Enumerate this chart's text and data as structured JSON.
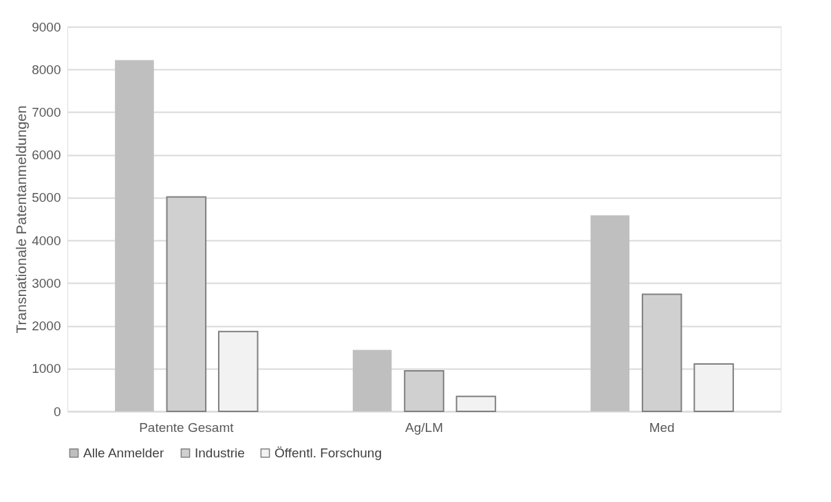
{
  "chart_data": {
    "type": "bar",
    "ylabel": "Transnationale Patentanmeldungen",
    "categories": [
      "Patente Gesamt",
      "Ag/LM",
      "Med"
    ],
    "series": [
      {
        "name": "Alle Anmelder",
        "color": "#bfbfbf",
        "values": [
          8220,
          1440,
          4590
        ]
      },
      {
        "name": "Industrie",
        "color": "#d0d0d0",
        "values": [
          5020,
          950,
          2740
        ]
      },
      {
        "name": "Öffentl. Forschung",
        "color": "#f2f2f2",
        "values": [
          1870,
          350,
          1110
        ]
      }
    ],
    "ylim": [
      0,
      9000
    ],
    "yticks": [
      0,
      1000,
      2000,
      3000,
      4000,
      5000,
      6000,
      7000,
      8000,
      9000
    ],
    "grid": "y",
    "legend": "bottom"
  }
}
